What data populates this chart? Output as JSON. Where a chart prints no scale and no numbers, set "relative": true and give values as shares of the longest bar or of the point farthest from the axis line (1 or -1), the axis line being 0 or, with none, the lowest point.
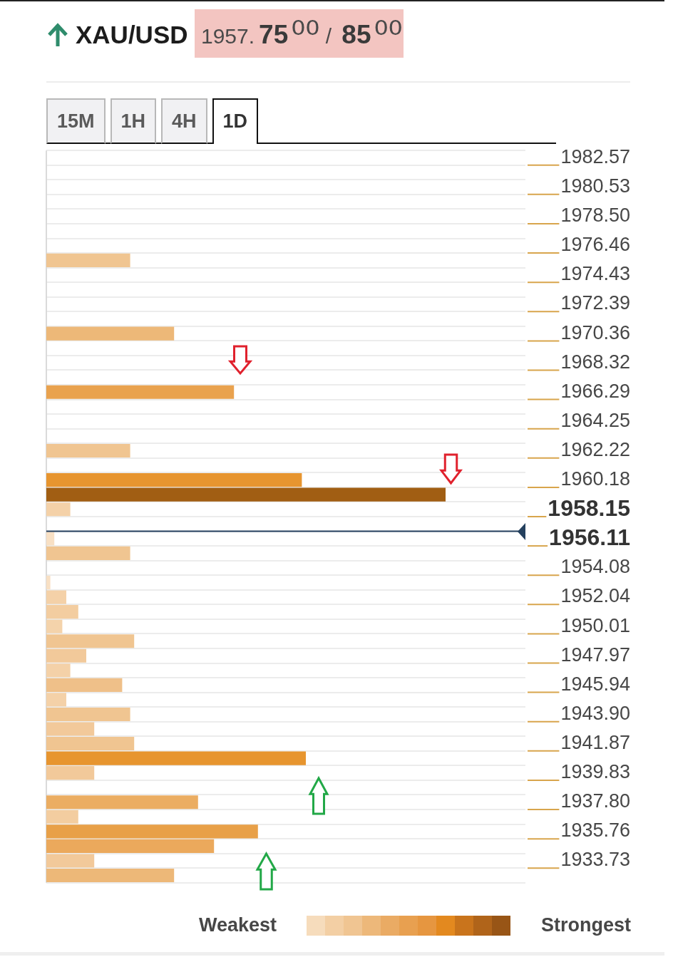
{
  "chart_data": {
    "type": "bar",
    "orientation": "horizontal",
    "relative": true,
    "title": "XAU/USD",
    "subtitle": "1957.75⁰⁰ / 85⁰⁰",
    "categories": [
      "1982.57",
      null,
      "1980.53",
      null,
      "1978.50",
      null,
      "1976.46",
      null,
      "1974.43",
      null,
      "1972.39",
      null,
      "1970.36",
      null,
      "1968.32",
      null,
      "1966.29",
      null,
      "1964.25",
      null,
      "1962.22",
      null,
      "1960.18",
      null,
      "1958.15",
      null,
      "1956.11",
      null,
      "1954.08",
      null,
      "1952.04",
      null,
      "1950.01",
      null,
      "1947.97",
      null,
      "1945.94",
      null,
      "1943.90",
      null,
      "1941.87",
      null,
      "1939.83",
      null,
      "1937.80",
      null,
      "1935.76",
      null,
      "1933.73",
      null
    ],
    "values": [
      null,
      null,
      null,
      null,
      null,
      null,
      null,
      0.21,
      null,
      null,
      null,
      null,
      0.32,
      null,
      null,
      null,
      0.47,
      null,
      null,
      null,
      0.21,
      null,
      0.64,
      1,
      0.06,
      null,
      0.02,
      0.21,
      null,
      0.01,
      0.05,
      0.08,
      0.04,
      0.22,
      0.1,
      0.06,
      0.19,
      0.05,
      0.21,
      0.12,
      0.22,
      0.65,
      0.12,
      null,
      0.38,
      0.08,
      0.53,
      0.42,
      0.12,
      0.32
    ],
    "colors": [
      null,
      null,
      null,
      null,
      null,
      null,
      null,
      "#f0c591",
      null,
      null,
      null,
      null,
      "#edb878",
      null,
      null,
      null,
      "#e9a24e",
      null,
      null,
      null,
      "#f0c591",
      null,
      "#e7952f",
      "#a15e13",
      "#f4d1a8",
      null,
      "#f8e0c4",
      "#f0c591",
      null,
      "#f8e0c4",
      "#f4d1a8",
      "#f3cda0",
      "#f4d3ab",
      "#f0c591",
      "#f2c99a",
      "#f4d1a8",
      "#efc089",
      "#f4d1a8",
      "#f0c591",
      "#f2c99a",
      "#f0c591",
      "#e7952f",
      "#f2c99a",
      null,
      "#ebad62",
      "#f3cda0",
      "#e8a048",
      "#eba95c",
      "#f2c99a",
      "#edb878"
    ],
    "grid": "y",
    "ref_lines": [
      {
        "axis": "y",
        "value": "1956.11",
        "color": "#24405e"
      }
    ],
    "annotations": [
      "15M",
      "1H",
      "4H",
      "1D",
      "Weakest",
      "Strongest"
    ]
  }
}
